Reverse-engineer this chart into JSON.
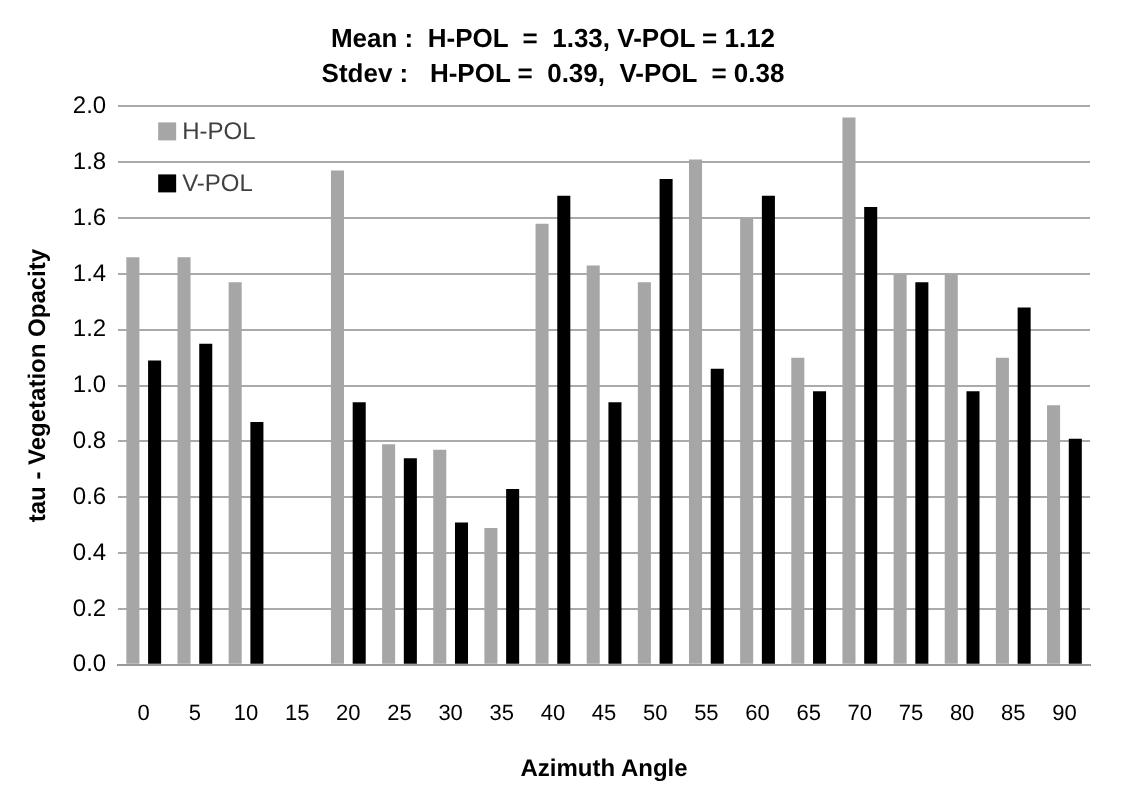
{
  "chart_data": {
    "type": "bar",
    "title": "Mean :  H-POL  =  1.33, V-POL = 1.12",
    "subtitle": "Stdev :   H-POL =  0.39,  V-POL  = 0.38",
    "xlabel": "Azimuth Angle",
    "ylabel": "tau - Vegetation Opacity",
    "categories": [
      "0",
      "5",
      "10",
      "15",
      "20",
      "25",
      "30",
      "35",
      "40",
      "45",
      "50",
      "55",
      "60",
      "65",
      "70",
      "75",
      "80",
      "85",
      "90"
    ],
    "series": [
      {
        "name": "H-POL",
        "color": "#a6a6a6",
        "values": [
          1.46,
          1.46,
          1.37,
          null,
          1.77,
          0.79,
          0.77,
          0.49,
          1.58,
          1.43,
          1.37,
          1.81,
          1.6,
          1.1,
          1.96,
          1.4,
          1.4,
          1.1,
          0.93
        ]
      },
      {
        "name": "V-POL",
        "color": "#000000",
        "values": [
          1.09,
          1.15,
          0.87,
          null,
          0.94,
          0.74,
          0.51,
          0.63,
          1.68,
          0.94,
          1.74,
          1.06,
          1.68,
          0.98,
          1.64,
          1.37,
          0.98,
          1.28,
          0.81
        ]
      }
    ],
    "ylim": [
      0,
      2
    ],
    "yticks": [
      {
        "value": 0,
        "label": "0.0"
      },
      0.2,
      0.4,
      0.6,
      0.8,
      {
        "value": 1,
        "label": "1.0"
      },
      1.2,
      1.4,
      1.6,
      1.8,
      {
        "value": 2,
        "label": "2.0"
      }
    ],
    "grid": "y",
    "legend": "top left"
  }
}
